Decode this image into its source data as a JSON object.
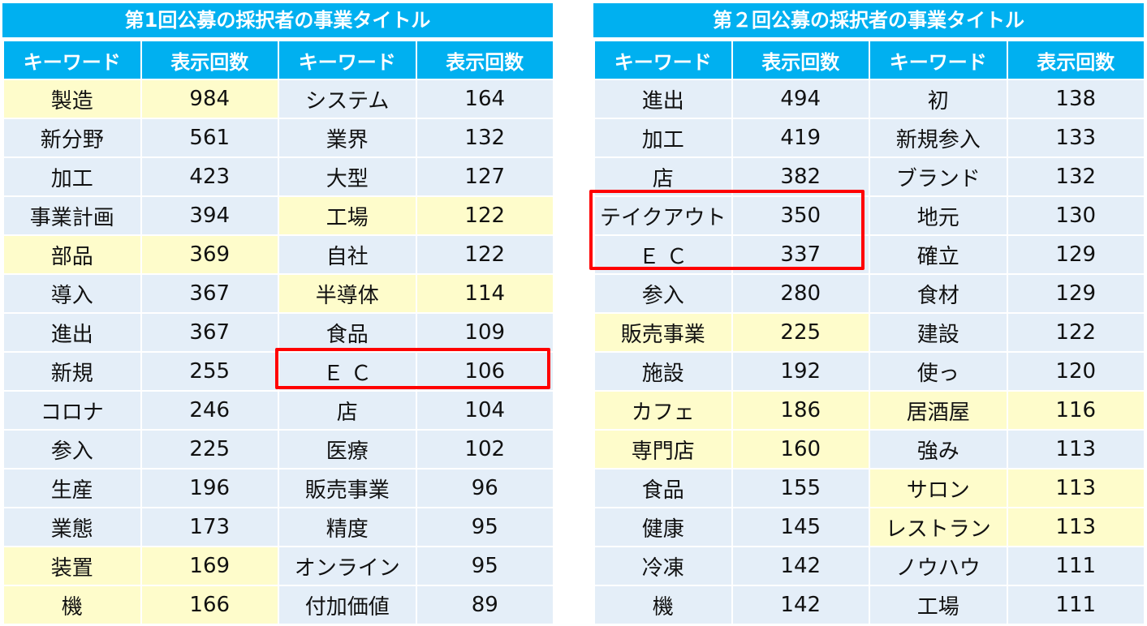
{
  "colors": {
    "header": "#00b0f0",
    "cell": "#e4eef8",
    "highlight": "#fefccb",
    "box": "#ff0000"
  },
  "panels": [
    {
      "title": "第1回公募の採択者の事業タイトル",
      "headers": [
        "キーワード",
        "表示回数",
        "キーワード",
        "表示回数"
      ],
      "rows": [
        [
          {
            "t": "製造",
            "h": true
          },
          {
            "t": "984",
            "h": true
          },
          {
            "t": "システム",
            "h": false
          },
          {
            "t": "164",
            "h": false
          }
        ],
        [
          {
            "t": "新分野",
            "h": false
          },
          {
            "t": "561",
            "h": false
          },
          {
            "t": "業界",
            "h": false
          },
          {
            "t": "132",
            "h": false
          }
        ],
        [
          {
            "t": "加工",
            "h": false
          },
          {
            "t": "423",
            "h": false
          },
          {
            "t": "大型",
            "h": false
          },
          {
            "t": "127",
            "h": false
          }
        ],
        [
          {
            "t": "事業計画",
            "h": false
          },
          {
            "t": "394",
            "h": false
          },
          {
            "t": "工場",
            "h": true
          },
          {
            "t": "122",
            "h": true
          }
        ],
        [
          {
            "t": "部品",
            "h": true
          },
          {
            "t": "369",
            "h": true
          },
          {
            "t": "自社",
            "h": false
          },
          {
            "t": "122",
            "h": false
          }
        ],
        [
          {
            "t": "導入",
            "h": false
          },
          {
            "t": "367",
            "h": false
          },
          {
            "t": "半導体",
            "h": true
          },
          {
            "t": "114",
            "h": true
          }
        ],
        [
          {
            "t": "進出",
            "h": false
          },
          {
            "t": "367",
            "h": false
          },
          {
            "t": "食品",
            "h": false
          },
          {
            "t": "109",
            "h": false
          }
        ],
        [
          {
            "t": "新規",
            "h": false
          },
          {
            "t": "255",
            "h": false
          },
          {
            "t": "Ｅ Ｃ",
            "h": false
          },
          {
            "t": "106",
            "h": false
          }
        ],
        [
          {
            "t": "コロナ",
            "h": false
          },
          {
            "t": "246",
            "h": false
          },
          {
            "t": "店",
            "h": false
          },
          {
            "t": "104",
            "h": false
          }
        ],
        [
          {
            "t": "参入",
            "h": false
          },
          {
            "t": "225",
            "h": false
          },
          {
            "t": "医療",
            "h": false
          },
          {
            "t": "102",
            "h": false
          }
        ],
        [
          {
            "t": "生産",
            "h": false
          },
          {
            "t": "196",
            "h": false
          },
          {
            "t": "販売事業",
            "h": false
          },
          {
            "t": "96",
            "h": false
          }
        ],
        [
          {
            "t": "業態",
            "h": false
          },
          {
            "t": "173",
            "h": false
          },
          {
            "t": "精度",
            "h": false
          },
          {
            "t": "95",
            "h": false
          }
        ],
        [
          {
            "t": "装置",
            "h": true
          },
          {
            "t": "169",
            "h": true
          },
          {
            "t": "オンライン",
            "h": false
          },
          {
            "t": "95",
            "h": false
          }
        ],
        [
          {
            "t": "機",
            "h": true
          },
          {
            "t": "166",
            "h": true
          },
          {
            "t": "付加価値",
            "h": false
          },
          {
            "t": "89",
            "h": false
          }
        ]
      ]
    },
    {
      "title": "第２回公募の採択者の事業タイトル",
      "headers": [
        "キーワード",
        "表示回数",
        "キーワード",
        "表示回数"
      ],
      "rows": [
        [
          {
            "t": "進出",
            "h": false
          },
          {
            "t": "494",
            "h": false
          },
          {
            "t": "初",
            "h": false
          },
          {
            "t": "138",
            "h": false
          }
        ],
        [
          {
            "t": "加工",
            "h": false
          },
          {
            "t": "419",
            "h": false
          },
          {
            "t": "新規参入",
            "h": false
          },
          {
            "t": "133",
            "h": false
          }
        ],
        [
          {
            "t": "店",
            "h": false
          },
          {
            "t": "382",
            "h": false
          },
          {
            "t": "ブランド",
            "h": false
          },
          {
            "t": "132",
            "h": false
          }
        ],
        [
          {
            "t": "テイクアウト",
            "h": false
          },
          {
            "t": "350",
            "h": false
          },
          {
            "t": "地元",
            "h": false
          },
          {
            "t": "130",
            "h": false
          }
        ],
        [
          {
            "t": "Ｅ Ｃ",
            "h": false
          },
          {
            "t": "337",
            "h": false
          },
          {
            "t": "確立",
            "h": false
          },
          {
            "t": "129",
            "h": false
          }
        ],
        [
          {
            "t": "参入",
            "h": false
          },
          {
            "t": "280",
            "h": false
          },
          {
            "t": "食材",
            "h": false
          },
          {
            "t": "129",
            "h": false
          }
        ],
        [
          {
            "t": "販売事業",
            "h": true
          },
          {
            "t": "225",
            "h": true
          },
          {
            "t": "建設",
            "h": false
          },
          {
            "t": "122",
            "h": false
          }
        ],
        [
          {
            "t": "施設",
            "h": false
          },
          {
            "t": "192",
            "h": false
          },
          {
            "t": "使っ",
            "h": false
          },
          {
            "t": "120",
            "h": false
          }
        ],
        [
          {
            "t": "カフェ",
            "h": true
          },
          {
            "t": "186",
            "h": true
          },
          {
            "t": "居酒屋",
            "h": true
          },
          {
            "t": "116",
            "h": true
          }
        ],
        [
          {
            "t": "専門店",
            "h": true
          },
          {
            "t": "160",
            "h": true
          },
          {
            "t": "強み",
            "h": false
          },
          {
            "t": "113",
            "h": false
          }
        ],
        [
          {
            "t": "食品",
            "h": false
          },
          {
            "t": "155",
            "h": false
          },
          {
            "t": "サロン",
            "h": true
          },
          {
            "t": "113",
            "h": true
          }
        ],
        [
          {
            "t": "健康",
            "h": false
          },
          {
            "t": "145",
            "h": false
          },
          {
            "t": "レストラン",
            "h": true
          },
          {
            "t": "113",
            "h": true
          }
        ],
        [
          {
            "t": "冷凍",
            "h": false
          },
          {
            "t": "142",
            "h": false
          },
          {
            "t": "ノウハウ",
            "h": false
          },
          {
            "t": "111",
            "h": false
          }
        ],
        [
          {
            "t": "機",
            "h": false
          },
          {
            "t": "142",
            "h": false
          },
          {
            "t": "工場",
            "h": false
          },
          {
            "t": "111",
            "h": false
          }
        ]
      ]
    }
  ]
}
